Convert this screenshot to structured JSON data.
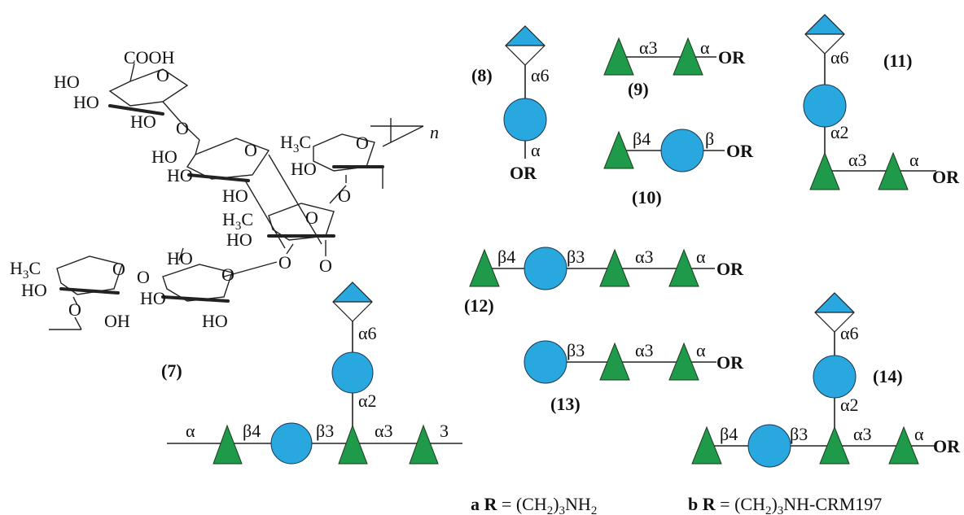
{
  "compounds": {
    "c7": "(7)",
    "c8": "(8)",
    "c9": "(9)",
    "c10": "(10)",
    "c11": "(11)",
    "c12": "(12)",
    "c13": "(13)",
    "c14": "(14)"
  },
  "structure": {
    "cooh": "COOH",
    "ho": "HO",
    "oh": "OH",
    "o": "O",
    "h3c": "H3C",
    "n": "n"
  },
  "linkages": {
    "a": "α",
    "a2": "α2",
    "a3": "α3",
    "a6": "α6",
    "b": "β",
    "b3": "β3",
    "b4": "β4",
    "three": "3"
  },
  "or_label": "OR",
  "footer": {
    "a_prefix": "a",
    "b_prefix": "b",
    "r_eq": "R",
    "eq": "=",
    "a_value": "(CH2)3NH2",
    "b_value": "(CH2)3NH-CRM197"
  },
  "legend_colors": {
    "triangle": "#1f9a4b",
    "circle": "#29a8e0",
    "diamond_top": "#29a8e0"
  },
  "icons": {
    "triangle": "rhamnose-green-triangle-icon",
    "circle": "glucose-blue-circle-icon",
    "diamond": "sialic-acid-diamond-icon"
  }
}
